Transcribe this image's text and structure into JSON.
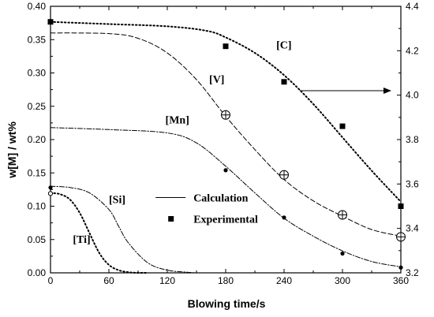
{
  "chart_data": {
    "type": "line",
    "title": "",
    "xlabel": "Blowing time/s",
    "ylabel_left": "w[M] / wt%",
    "ylabel_right": "",
    "xlim": [
      0,
      360
    ],
    "ylim_left": [
      0.0,
      0.4
    ],
    "ylim_right": [
      3.2,
      4.4
    ],
    "x_ticks": [
      0,
      60,
      120,
      180,
      240,
      300,
      360
    ],
    "y_left_ticks": [
      "0.00",
      "0.05",
      "0.10",
      "0.15",
      "0.20",
      "0.25",
      "0.30",
      "0.35",
      "0.40"
    ],
    "y_right_ticks": [
      "3.2",
      "3.4",
      "3.6",
      "3.8",
      "4.0",
      "4.2",
      "4.4"
    ],
    "grid": false,
    "calculated_series": [
      {
        "name": "[C]",
        "axis": "right",
        "style": "dotted",
        "x": [
          0,
          60,
          120,
          160,
          180,
          210,
          240,
          270,
          300,
          330,
          360
        ],
        "y": [
          4.33,
          4.32,
          4.31,
          4.29,
          4.26,
          4.19,
          4.09,
          3.96,
          3.81,
          3.66,
          3.52
        ]
      },
      {
        "name": "[V]",
        "axis": "left",
        "style": "dashed",
        "x": [
          0,
          60,
          90,
          120,
          150,
          180,
          210,
          240,
          270,
          300,
          330,
          360
        ],
        "y": [
          0.36,
          0.359,
          0.352,
          0.33,
          0.29,
          0.235,
          0.185,
          0.14,
          0.108,
          0.085,
          0.065,
          0.055
        ]
      },
      {
        "name": "[Mn]",
        "axis": "left",
        "style": "dash-dot",
        "x": [
          0,
          60,
          120,
          150,
          180,
          210,
          240,
          270,
          300,
          330,
          360
        ],
        "y": [
          0.218,
          0.215,
          0.21,
          0.195,
          0.16,
          0.12,
          0.082,
          0.055,
          0.033,
          0.017,
          0.009
        ]
      },
      {
        "name": "[Si]",
        "axis": "left",
        "style": "dash-dot",
        "x": [
          0,
          20,
          40,
          60,
          70,
          80,
          100,
          120,
          140,
          150
        ],
        "y": [
          0.13,
          0.128,
          0.12,
          0.095,
          0.07,
          0.045,
          0.015,
          0.004,
          0.001,
          0.0
        ]
      },
      {
        "name": "[Ti]",
        "axis": "left",
        "style": "dotted",
        "x": [
          0,
          10,
          20,
          30,
          40,
          50,
          60,
          70,
          80,
          90,
          100
        ],
        "y": [
          0.12,
          0.118,
          0.11,
          0.09,
          0.06,
          0.03,
          0.012,
          0.004,
          0.001,
          0.0,
          0.0
        ]
      }
    ],
    "experimental_series": [
      {
        "name": "[C]",
        "axis": "right",
        "marker": "square",
        "x": [
          0,
          180,
          240,
          300,
          360
        ],
        "y": [
          4.33,
          4.22,
          4.06,
          3.86,
          3.5
        ]
      },
      {
        "name": "[V]",
        "axis": "left",
        "marker": "open-circle-cross",
        "x": [
          180,
          240,
          300,
          360
        ],
        "y": [
          0.237,
          0.147,
          0.087,
          0.054
        ]
      },
      {
        "name": "[Mn]",
        "axis": "left",
        "marker": "dot",
        "x": [
          180,
          240,
          300,
          360
        ],
        "y": [
          0.154,
          0.083,
          0.029,
          0.008
        ]
      },
      {
        "name": "[Si]",
        "axis": "left",
        "marker": "dot",
        "x": [
          0
        ],
        "y": [
          0.128
        ]
      },
      {
        "name": "[Ti]",
        "axis": "left",
        "marker": "open-circle-small",
        "x": [
          0
        ],
        "y": [
          0.119
        ]
      }
    ],
    "series_labels": [
      "[C]",
      "[V]",
      "[Mn]",
      "[Si]",
      "[Ti]"
    ],
    "legend": {
      "placement": "center",
      "entries": [
        {
          "label": "Calculation",
          "symbol": "line"
        },
        {
          "label": "Experimental",
          "symbol": "square"
        }
      ]
    },
    "annotations": [
      {
        "type": "arrow",
        "from": [
          240,
          4.02
        ],
        "to": [
          360,
          4.02
        ],
        "axis": "right",
        "meaning": "[C] uses right axis"
      }
    ],
    "colors": {
      "line": "#000000",
      "background": "#ffffff"
    }
  }
}
